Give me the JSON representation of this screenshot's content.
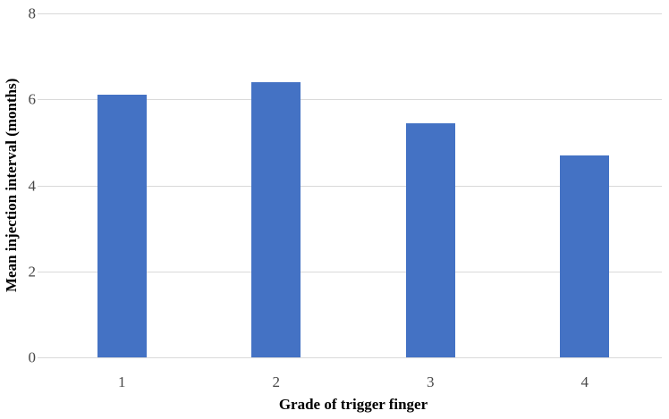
{
  "chart_data": {
    "type": "bar",
    "categories": [
      "1",
      "2",
      "3",
      "4"
    ],
    "values": [
      6.1,
      6.4,
      5.45,
      4.7
    ],
    "xlabel": "Grade of trigger finger",
    "ylabel": "Mean injection interval (months)",
    "ylim": [
      0,
      8
    ],
    "yticks": [
      0,
      2,
      4,
      6,
      8
    ],
    "grid": "horizontal",
    "legend_position": "none",
    "bar_color": "#4472C4",
    "gridline_color": "#D9D9D9",
    "tick_label_color": "#474747",
    "axis_title_color": "#000000",
    "background_color": "#FFFFFF"
  }
}
